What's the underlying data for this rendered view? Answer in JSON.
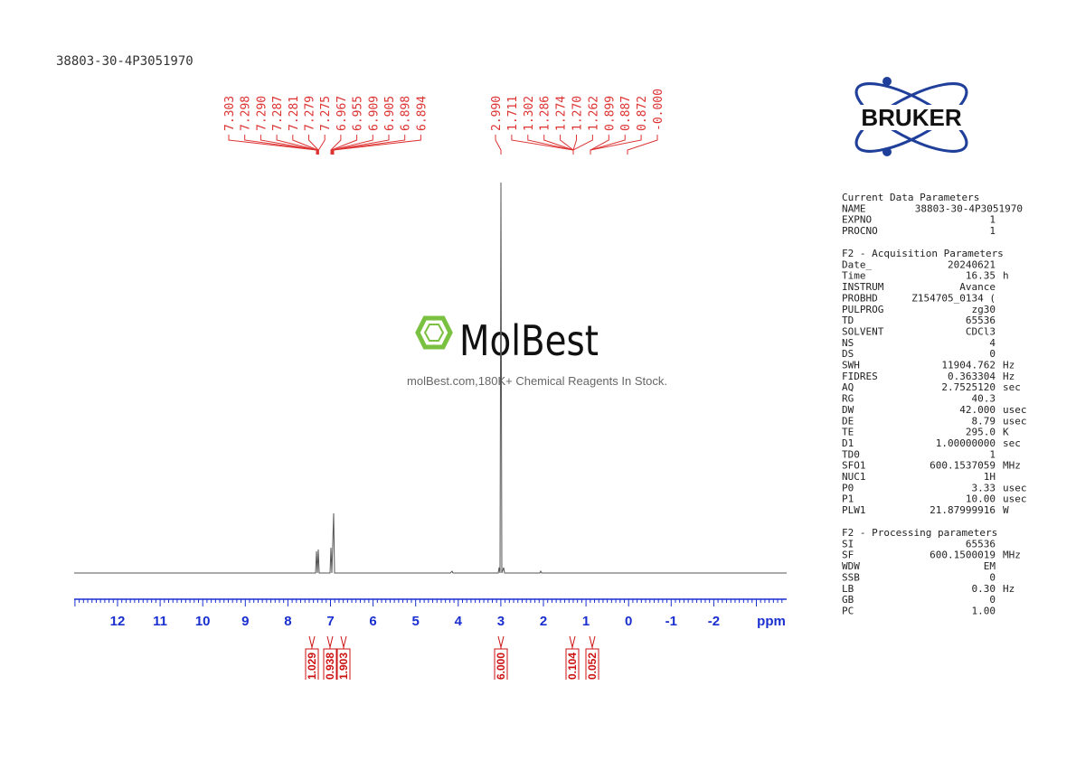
{
  "title": "38803-30-4P3051970",
  "peak_labels": {
    "left": [
      "7.303",
      "7.298",
      "7.290",
      "7.287",
      "7.281",
      "7.279",
      "7.275",
      "6.967",
      "6.955",
      "6.909",
      "6.905",
      "6.898",
      "6.894"
    ],
    "right": [
      "2.990",
      "1.711",
      "1.302",
      "1.286",
      "1.274",
      "1.270",
      "1.262",
      "0.899",
      "0.887",
      "0.872",
      "-0.000"
    ]
  },
  "axis": {
    "ticks": [
      "12",
      "11",
      "10",
      "9",
      "8",
      "7",
      "6",
      "5",
      "4",
      "3",
      "2",
      "1",
      "0",
      "-1",
      "-2"
    ],
    "unit": "ppm"
  },
  "integrals": [
    "1.029",
    "0.938",
    "1.903",
    "6.000",
    "0.104",
    "0.052"
  ],
  "watermark": {
    "brand": "MolBest",
    "tagline": "molBest.com,180K+ Chemical Reagents In Stock."
  },
  "logo": "BRUKER",
  "parameters": [
    {
      "title": "Current Data Parameters",
      "rows": [
        [
          "NAME",
          "38803-30-4P3051970",
          ""
        ],
        [
          "EXPNO",
          "1",
          ""
        ],
        [
          "PROCNO",
          "1",
          ""
        ]
      ]
    },
    {
      "title": "F2 - Acquisition Parameters",
      "rows": [
        [
          "Date_",
          "20240621",
          ""
        ],
        [
          "Time",
          "16.35",
          "h"
        ],
        [
          "INSTRUM",
          "Avance",
          ""
        ],
        [
          "PROBHD",
          "Z154705_0134 (",
          ""
        ],
        [
          "PULPROG",
          "zg30",
          ""
        ],
        [
          "TD",
          "65536",
          ""
        ],
        [
          "SOLVENT",
          "CDCl3",
          ""
        ],
        [
          "NS",
          "4",
          ""
        ],
        [
          "DS",
          "0",
          ""
        ],
        [
          "SWH",
          "11904.762",
          "Hz"
        ],
        [
          "FIDRES",
          "0.363304",
          "Hz"
        ],
        [
          "AQ",
          "2.7525120",
          "sec"
        ],
        [
          "RG",
          "40.3",
          ""
        ],
        [
          "DW",
          "42.000",
          "usec"
        ],
        [
          "DE",
          "8.79",
          "usec"
        ],
        [
          "TE",
          "295.0",
          "K"
        ],
        [
          "D1",
          "1.00000000",
          "sec"
        ],
        [
          "TD0",
          "1",
          ""
        ],
        [
          "SFO1",
          "600.1537059",
          "MHz"
        ],
        [
          "NUC1",
          "1H",
          ""
        ],
        [
          "P0",
          "3.33",
          "usec"
        ],
        [
          "P1",
          "10.00",
          "usec"
        ],
        [
          "PLW1",
          "21.87999916",
          "W"
        ]
      ]
    },
    {
      "title": "F2 - Processing parameters",
      "rows": [
        [
          "SI",
          "65536",
          ""
        ],
        [
          "SF",
          "600.1500019",
          "MHz"
        ],
        [
          "WDW",
          "EM",
          ""
        ],
        [
          "SSB",
          "0",
          ""
        ],
        [
          "LB",
          "0.30",
          "Hz"
        ],
        [
          "GB",
          "0",
          ""
        ],
        [
          "PC",
          "1.00",
          ""
        ]
      ]
    }
  ]
}
